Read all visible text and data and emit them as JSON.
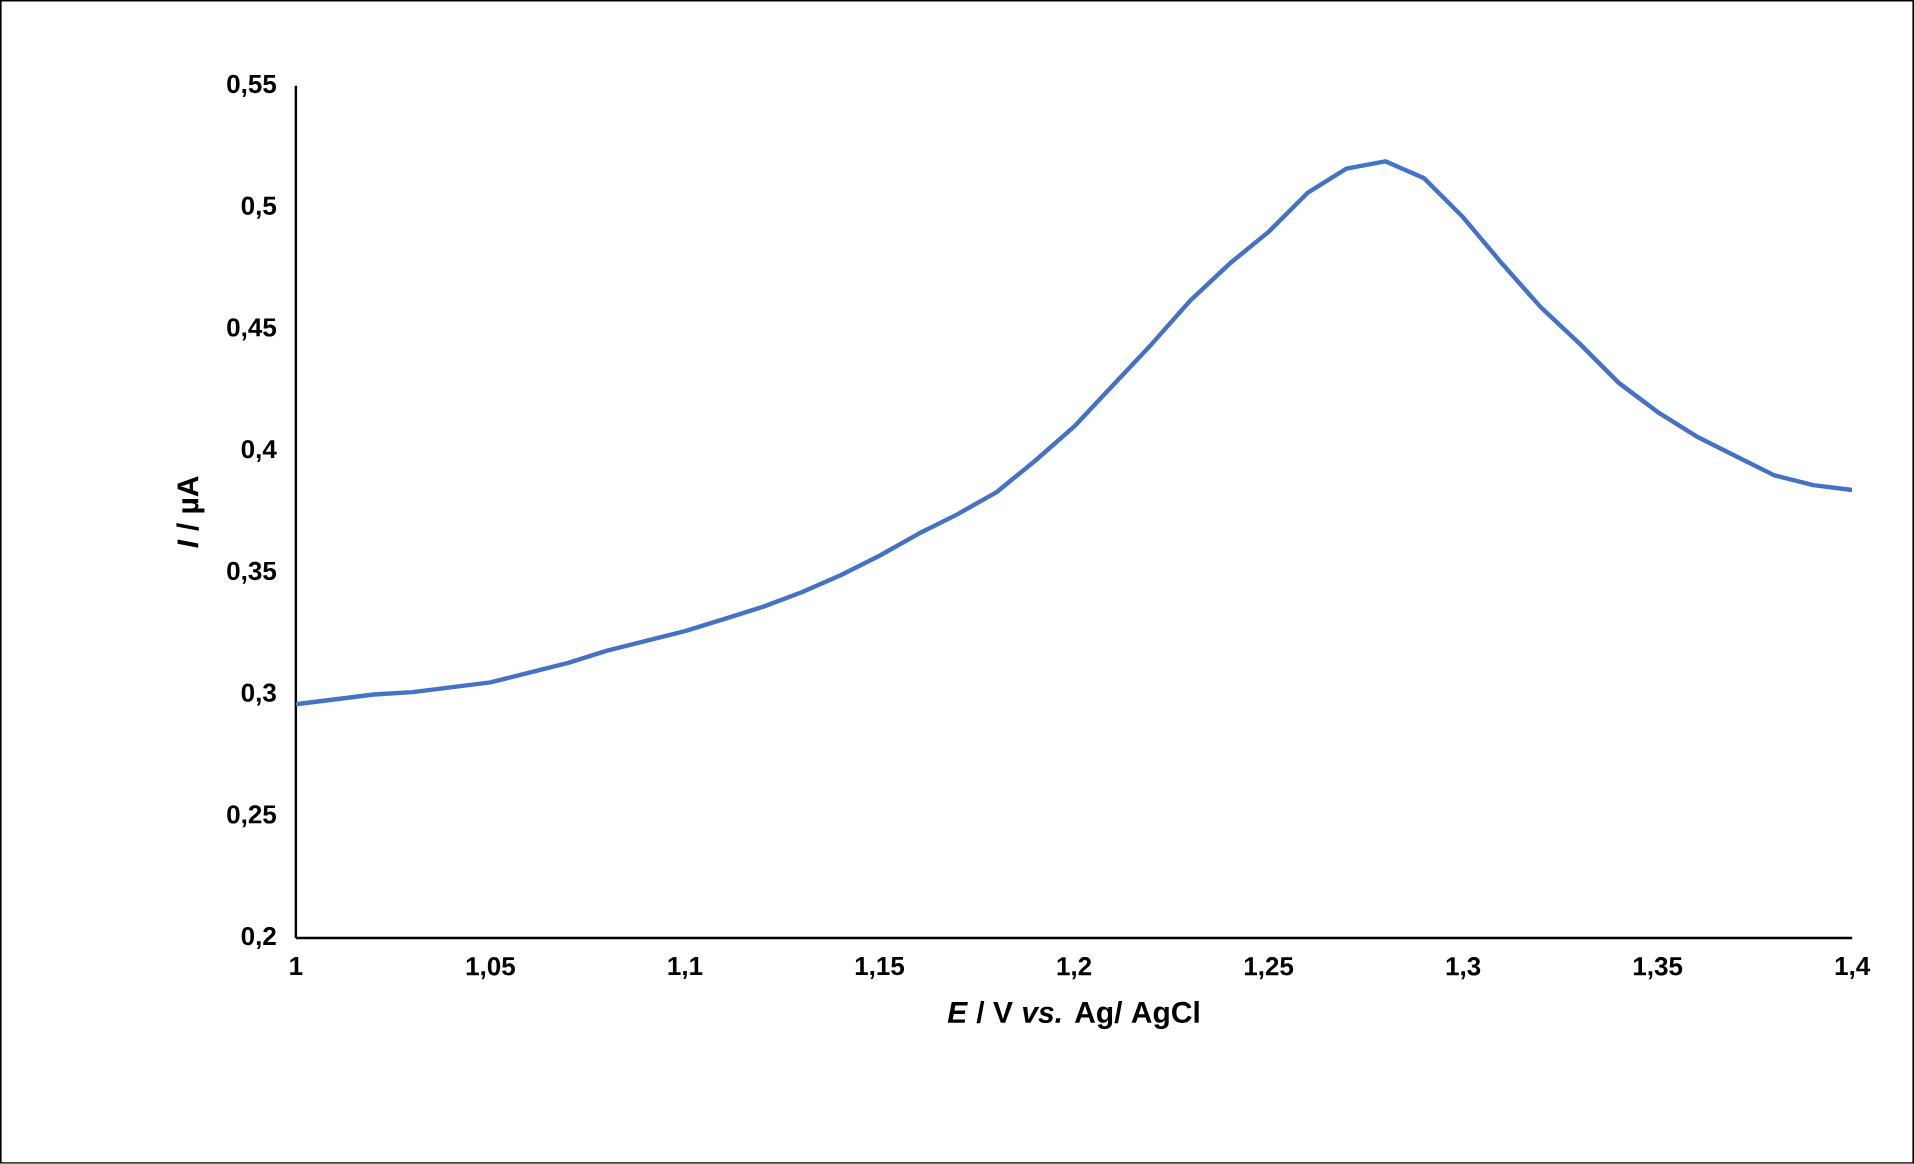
{
  "chart_data": {
    "type": "line",
    "xlabel": "*E* / V *vs.* Ag/ AgCl",
    "ylabel": "*I* / µA",
    "xlim": [
      1,
      1.4
    ],
    "ylim": [
      0.2,
      0.55
    ],
    "xticks": [
      1,
      {
        "value": 1.05,
        "label": "1,05"
      },
      {
        "value": 1.1,
        "label": "1,1"
      },
      {
        "value": 1.15,
        "label": "1,15"
      },
      {
        "value": 1.2,
        "label": "1,2"
      },
      {
        "value": 1.25,
        "label": "1,25"
      },
      {
        "value": 1.3,
        "label": "1,3"
      },
      {
        "value": 1.35,
        "label": "1,35"
      },
      {
        "value": 1.4,
        "label": "1,4"
      }
    ],
    "yticks": [
      {
        "value": 0.2,
        "label": "0,2"
      },
      {
        "value": 0.25,
        "label": "0,25"
      },
      {
        "value": 0.3,
        "label": "0,3"
      },
      {
        "value": 0.35,
        "label": "0,35"
      },
      {
        "value": 0.4,
        "label": "0,4"
      },
      {
        "value": 0.45,
        "label": "0,45"
      },
      {
        "value": 0.5,
        "label": "0,5"
      },
      {
        "value": 0.55,
        "label": "0,55"
      }
    ],
    "grid": false,
    "marker": "none",
    "line_style": "solid",
    "x": [
      1.0,
      1.01,
      1.02,
      1.03,
      1.04,
      1.05,
      1.06,
      1.07,
      1.08,
      1.09,
      1.1,
      1.11,
      1.12,
      1.13,
      1.14,
      1.15,
      1.16,
      1.17,
      1.18,
      1.19,
      1.2,
      1.21,
      1.22,
      1.23,
      1.24,
      1.25,
      1.26,
      1.27,
      1.28,
      1.29,
      1.3,
      1.31,
      1.32,
      1.33,
      1.34,
      1.35,
      1.36,
      1.37,
      1.38,
      1.39,
      1.4
    ],
    "series": [
      {
        "color": "#4472c4",
        "values": [
          0.296,
          0.298,
          0.3,
          0.301,
          0.303,
          0.305,
          0.309,
          0.313,
          0.318,
          0.322,
          0.326,
          0.331,
          0.336,
          0.342,
          0.349,
          0.357,
          0.366,
          0.374,
          0.383,
          0.396,
          0.41,
          0.427,
          0.444,
          0.462,
          0.477,
          0.49,
          0.506,
          0.516,
          0.519,
          0.512,
          0.496,
          0.477,
          0.459,
          0.444,
          0.428,
          0.416,
          0.406,
          0.398,
          0.39,
          0.386,
          0.384
        ]
      }
    ]
  }
}
